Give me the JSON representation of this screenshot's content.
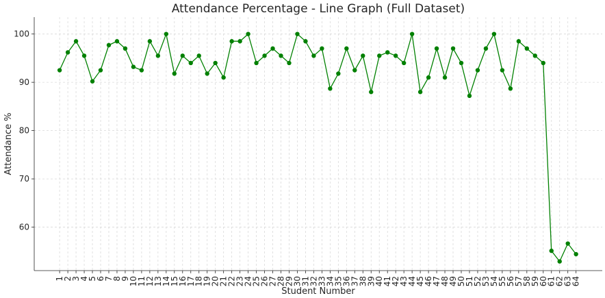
{
  "chart_data": {
    "type": "line",
    "title": "Attendance Percentage - Line Graph (Full Dataset)",
    "xlabel": "Student Number",
    "ylabel": "Attendance %",
    "x": [
      1,
      2,
      3,
      4,
      5,
      6,
      7,
      8,
      9,
      10,
      11,
      12,
      13,
      14,
      15,
      16,
      17,
      18,
      19,
      20,
      21,
      22,
      23,
      24,
      25,
      26,
      27,
      28,
      29,
      30,
      31,
      32,
      33,
      34,
      35,
      36,
      37,
      38,
      39,
      40,
      41,
      42,
      43,
      44,
      45,
      46,
      47,
      48,
      49,
      50,
      51,
      52,
      53,
      54,
      55,
      56,
      57,
      58,
      59,
      60,
      61,
      62,
      63,
      64
    ],
    "y": [
      92.5,
      96.2,
      98.5,
      95.5,
      90.2,
      92.5,
      97.7,
      98.5,
      97.0,
      93.2,
      92.5,
      98.5,
      95.5,
      100.0,
      91.8,
      95.5,
      94.0,
      95.5,
      91.8,
      94.0,
      91.0,
      98.5,
      98.5,
      100.0,
      94.0,
      95.5,
      97.0,
      95.5,
      94.0,
      100.0,
      98.5,
      95.5,
      97.0,
      88.7,
      91.8,
      97.0,
      92.5,
      95.5,
      88.0,
      95.5,
      96.2,
      95.5,
      94.0,
      100.0,
      88.0,
      91.0,
      97.0,
      91.0,
      97.0,
      94.0,
      87.2,
      92.5,
      97.0,
      100.0,
      92.5,
      88.7,
      98.5,
      97.0,
      95.5,
      94.0,
      55.1,
      52.9,
      56.6,
      54.4
    ],
    "ylim": [
      51,
      103.5
    ],
    "xlim": [
      -2.1,
      67.2
    ],
    "yticks": [
      60,
      70,
      80,
      90,
      100
    ],
    "grid": true,
    "legend": "none",
    "color": "#008000"
  }
}
